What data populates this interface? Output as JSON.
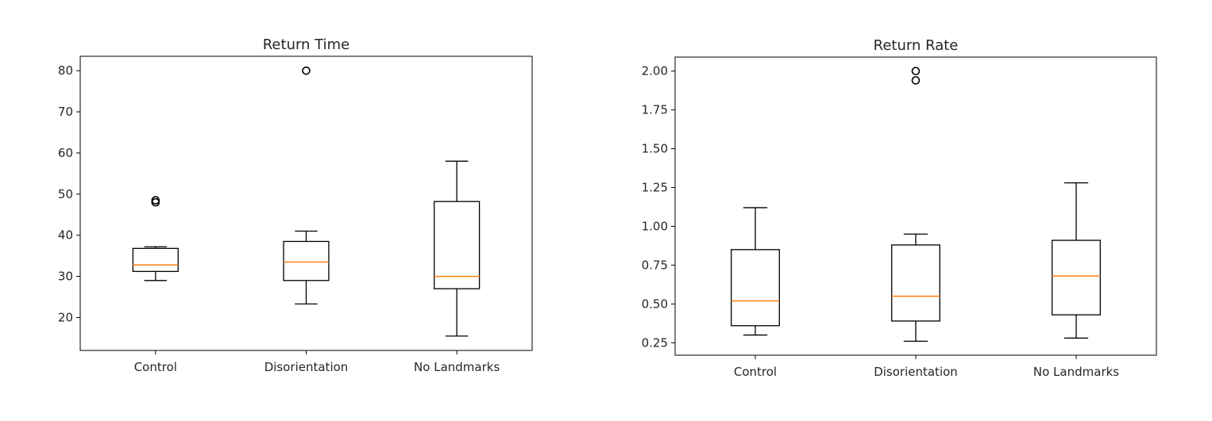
{
  "chart_data": [
    {
      "type": "box",
      "title": "Return Time",
      "categories": [
        "Control",
        "Disorientation",
        "No Landmarks"
      ],
      "ylim": [
        12,
        83.5
      ],
      "yticks": [
        20,
        30,
        40,
        50,
        60,
        70,
        80
      ],
      "ytick_labels": [
        "20",
        "30",
        "40",
        "50",
        "60",
        "70",
        "80"
      ],
      "boxes": [
        {
          "whislo": 29,
          "q1": 31.2,
          "med": 32.8,
          "q3": 36.8,
          "whishi": 37.2,
          "fliers": [
            48,
            48.5
          ]
        },
        {
          "whislo": 23.3,
          "q1": 29,
          "med": 33.5,
          "q3": 38.5,
          "whishi": 41,
          "fliers": [
            80
          ]
        },
        {
          "whislo": 15.5,
          "q1": 27,
          "med": 30,
          "q3": 48.2,
          "whishi": 58,
          "fliers": []
        }
      ],
      "box_color": "#000000",
      "median_color": "#ff7f0e"
    },
    {
      "type": "box",
      "title": "Return Rate",
      "categories": [
        "Control",
        "Disorientation",
        "No Landmarks"
      ],
      "ylim": [
        0.17,
        2.09
      ],
      "yticks": [
        0.25,
        0.5,
        0.75,
        1.0,
        1.25,
        1.5,
        1.75,
        2.0
      ],
      "ytick_labels": [
        "0.25",
        "0.50",
        "0.75",
        "1.00",
        "1.25",
        "1.50",
        "1.75",
        "2.00"
      ],
      "boxes": [
        {
          "whislo": 0.3,
          "q1": 0.36,
          "med": 0.52,
          "q3": 0.85,
          "whishi": 1.12,
          "fliers": []
        },
        {
          "whislo": 0.26,
          "q1": 0.39,
          "med": 0.55,
          "q3": 0.88,
          "whishi": 0.95,
          "fliers": [
            1.94,
            2.0
          ]
        },
        {
          "whislo": 0.28,
          "q1": 0.43,
          "med": 0.68,
          "q3": 0.91,
          "whishi": 1.28,
          "fliers": []
        }
      ],
      "box_color": "#000000",
      "median_color": "#ff7f0e"
    }
  ]
}
